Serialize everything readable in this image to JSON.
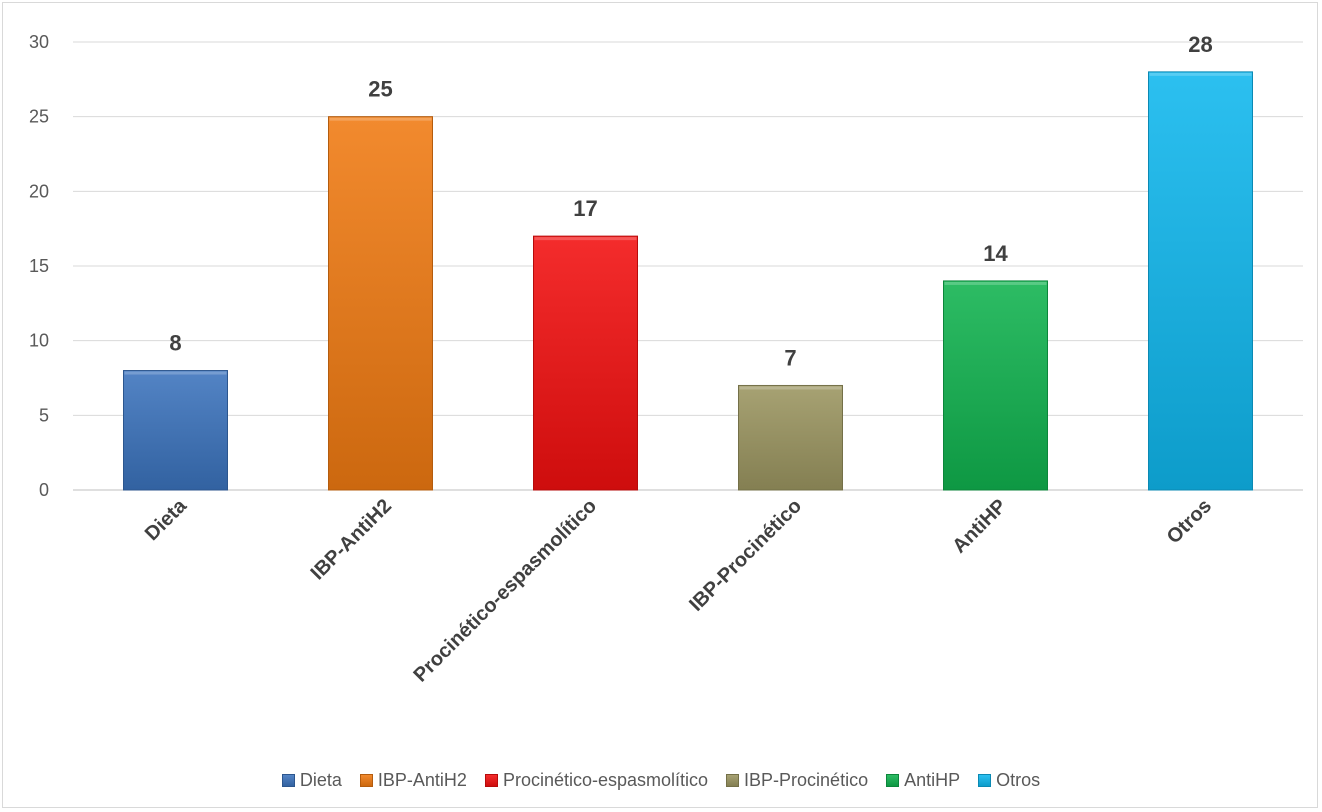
{
  "chart_data": {
    "type": "bar",
    "categories": [
      "Dieta",
      "IBP-AntiH2",
      "Procinético-espasmolítico",
      "IBP-Procinético",
      "AntiHP",
      "Otros"
    ],
    "values": [
      8,
      25,
      17,
      7,
      14,
      28
    ],
    "colors": [
      "#3b73bd",
      "#f07a12",
      "#f20f0f",
      "#9b9560",
      "#10b34f",
      "#0fb7ee"
    ],
    "yticks": [
      0,
      5,
      10,
      15,
      20,
      25,
      30
    ],
    "ylim": [
      0,
      30
    ],
    "grid": true,
    "legend_position": "bottom",
    "title": "",
    "xlabel": "",
    "ylabel": ""
  }
}
